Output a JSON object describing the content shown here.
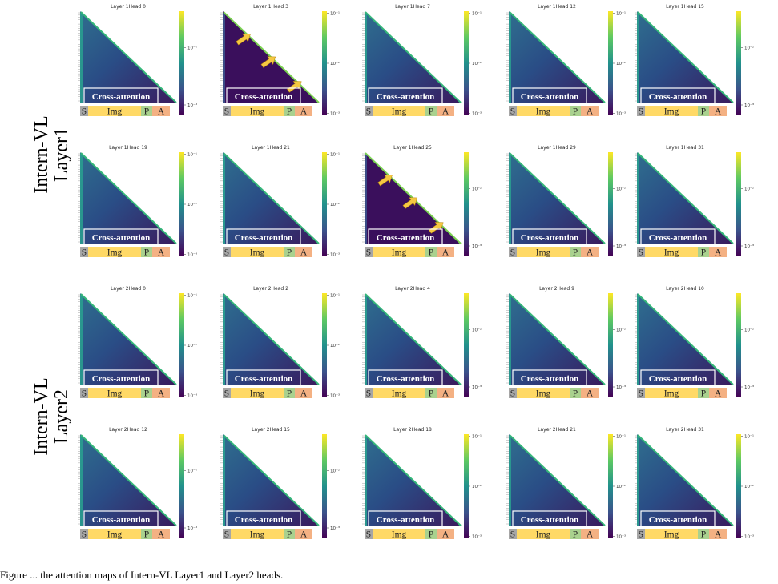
{
  "figure": {
    "row_groups": [
      {
        "lines": [
          "Intern-VL",
          "Layer1"
        ]
      },
      {
        "lines": [
          "Intern-VL",
          "Layer2"
        ]
      }
    ],
    "panel_common": {
      "cross_attention_label": "Cross-attention",
      "segments": [
        "S",
        "Img",
        "P",
        "A"
      ],
      "colorbar_ticks": [
        "10⁻¹",
        "10⁻²",
        "10⁻³"
      ]
    },
    "colors": {
      "segment_S": "#a6a6a6",
      "segment_Img": "#ffd966",
      "segment_P": "#a9d18e",
      "segment_A": "#f4b183",
      "arrow": "#f5c842",
      "box_border": "#ffffff"
    },
    "caption": "Figure ... the attention maps of Intern-VL Layer1 and Layer2 heads."
  },
  "chart_data": [
    {
      "type": "heatmap",
      "title": "Layer 1Head 0",
      "scale": "log",
      "colormap": "viridis",
      "cbar_ticks": [
        "10⁻²",
        "10⁻³"
      ],
      "arrows": 0
    },
    {
      "type": "heatmap",
      "title": "Layer 1Head 3",
      "scale": "log",
      "colormap": "viridis",
      "cbar_ticks": [
        "10⁻¹",
        "10⁻²",
        "10⁻³"
      ],
      "arrows": 3
    },
    {
      "type": "heatmap",
      "title": "Layer 1Head 7",
      "scale": "log",
      "colormap": "viridis",
      "cbar_ticks": [
        "10⁻¹",
        "10⁻²",
        "10⁻³"
      ],
      "arrows": 0
    },
    {
      "type": "heatmap",
      "title": "Layer 1Head 12",
      "scale": "log",
      "colormap": "viridis",
      "cbar_ticks": [
        "10⁻¹",
        "10⁻²",
        "10⁻³"
      ],
      "arrows": 0
    },
    {
      "type": "heatmap",
      "title": "Layer 1Head 15",
      "scale": "log",
      "colormap": "viridis",
      "cbar_ticks": [
        "10⁻²",
        "10⁻³"
      ],
      "arrows": 0
    },
    {
      "type": "heatmap",
      "title": "Layer 1Head 19",
      "scale": "log",
      "colormap": "viridis",
      "cbar_ticks": [
        "10⁻¹",
        "10⁻²",
        "10⁻³"
      ],
      "arrows": 0
    },
    {
      "type": "heatmap",
      "title": "Layer 1Head 21",
      "scale": "log",
      "colormap": "viridis",
      "cbar_ticks": [
        "10⁻¹",
        "10⁻²",
        "10⁻³"
      ],
      "arrows": 0
    },
    {
      "type": "heatmap",
      "title": "Layer 1Head 25",
      "scale": "log",
      "colormap": "viridis",
      "cbar_ticks": [
        "10⁻²",
        "10⁻³"
      ],
      "arrows": 3
    },
    {
      "type": "heatmap",
      "title": "Layer 1Head 29",
      "scale": "log",
      "colormap": "viridis",
      "cbar_ticks": [
        "10⁻²",
        "10⁻³"
      ],
      "arrows": 0
    },
    {
      "type": "heatmap",
      "title": "Layer 1Head 31",
      "scale": "log",
      "colormap": "viridis",
      "cbar_ticks": [
        "10⁻²",
        "10⁻³"
      ],
      "arrows": 0
    },
    {
      "type": "heatmap",
      "title": "Layer 2Head 0",
      "scale": "log",
      "colormap": "viridis",
      "cbar_ticks": [
        "10⁻¹",
        "10⁻²",
        "10⁻³"
      ],
      "arrows": 0
    },
    {
      "type": "heatmap",
      "title": "Layer 2Head 2",
      "scale": "log",
      "colormap": "viridis",
      "cbar_ticks": [
        "10⁻¹",
        "10⁻²",
        "10⁻³"
      ],
      "arrows": 0
    },
    {
      "type": "heatmap",
      "title": "Layer 2Head 4",
      "scale": "log",
      "colormap": "viridis",
      "cbar_ticks": [
        "10⁻²",
        "10⁻³"
      ],
      "arrows": 0
    },
    {
      "type": "heatmap",
      "title": "Layer 2Head 9",
      "scale": "log",
      "colormap": "viridis",
      "cbar_ticks": [
        "10⁻²",
        "10⁻³"
      ],
      "arrows": 0
    },
    {
      "type": "heatmap",
      "title": "Layer 2Head 10",
      "scale": "log",
      "colormap": "viridis",
      "cbar_ticks": [
        "10⁻²",
        "10⁻³"
      ],
      "arrows": 0
    },
    {
      "type": "heatmap",
      "title": "Layer 2Head 12",
      "scale": "log",
      "colormap": "viridis",
      "cbar_ticks": [
        "10⁻²",
        "10⁻³"
      ],
      "arrows": 0
    },
    {
      "type": "heatmap",
      "title": "Layer 2Head 15",
      "scale": "log",
      "colormap": "viridis",
      "cbar_ticks": [
        "10⁻²",
        "10⁻³"
      ],
      "arrows": 0
    },
    {
      "type": "heatmap",
      "title": "Layer 2Head 18",
      "scale": "log",
      "colormap": "viridis",
      "cbar_ticks": [
        "10⁻¹",
        "10⁻²",
        "10⁻³"
      ],
      "arrows": 0
    },
    {
      "type": "heatmap",
      "title": "Layer 2Head 21",
      "scale": "log",
      "colormap": "viridis",
      "cbar_ticks": [
        "10⁻¹",
        "10⁻²",
        "10⁻³"
      ],
      "arrows": 0
    },
    {
      "type": "heatmap",
      "title": "Layer 2Head 31",
      "scale": "log",
      "colormap": "viridis",
      "cbar_ticks": [
        "10⁻¹",
        "10⁻²",
        "10⁻³"
      ],
      "arrows": 0
    }
  ]
}
